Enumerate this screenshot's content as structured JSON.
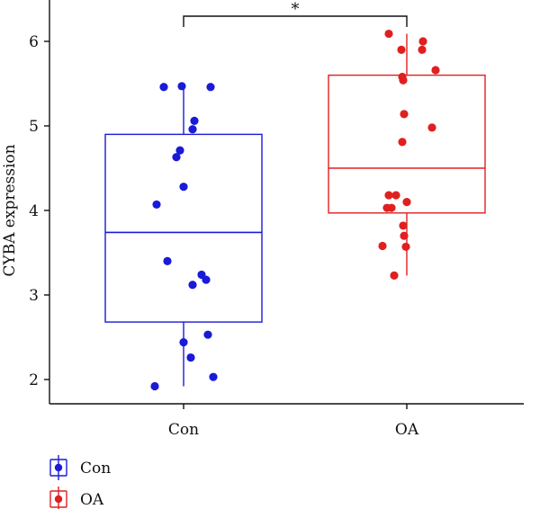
{
  "chart_data": {
    "type": "box",
    "title": "",
    "xlabel": "",
    "ylabel": "CYBA expression",
    "ylim": [
      1.75,
      6.5
    ],
    "yticks": [
      2,
      3,
      4,
      5,
      6
    ],
    "grid": false,
    "legend_position": "bottom-left",
    "significance": {
      "between": [
        "Con",
        "OA"
      ],
      "label": "*"
    },
    "categories": [
      "Con",
      "OA"
    ],
    "series": [
      {
        "name": "Con",
        "color": "#1a1ad8",
        "box": {
          "whisker_low": 1.92,
          "q1": 2.68,
          "median": 3.74,
          "q3": 4.9,
          "whisker_high": 5.47
        },
        "points": [
          {
            "jitter": 0.3,
            "y": 5.46
          },
          {
            "jitter": -0.02,
            "y": 5.47
          },
          {
            "jitter": -0.22,
            "y": 5.46
          },
          {
            "jitter": 0.12,
            "y": 5.06
          },
          {
            "jitter": 0.1,
            "y": 4.96
          },
          {
            "jitter": -0.04,
            "y": 4.71
          },
          {
            "jitter": -0.08,
            "y": 4.63
          },
          {
            "jitter": 0.0,
            "y": 4.28
          },
          {
            "jitter": -0.3,
            "y": 4.07
          },
          {
            "jitter": -0.18,
            "y": 3.4
          },
          {
            "jitter": 0.2,
            "y": 3.24
          },
          {
            "jitter": 0.25,
            "y": 3.18
          },
          {
            "jitter": 0.1,
            "y": 3.12
          },
          {
            "jitter": 0.27,
            "y": 2.53
          },
          {
            "jitter": 0.0,
            "y": 2.44
          },
          {
            "jitter": 0.08,
            "y": 2.26
          },
          {
            "jitter": 0.33,
            "y": 2.03
          },
          {
            "jitter": -0.32,
            "y": 1.92
          }
        ]
      },
      {
        "name": "OA",
        "color": "#e02020",
        "box": {
          "whisker_low": 3.23,
          "q1": 3.97,
          "median": 4.5,
          "q3": 5.6,
          "whisker_high": 6.09
        },
        "points": [
          {
            "jitter": -0.2,
            "y": 6.09
          },
          {
            "jitter": 0.18,
            "y": 6.0
          },
          {
            "jitter": -0.06,
            "y": 5.9
          },
          {
            "jitter": 0.17,
            "y": 5.9
          },
          {
            "jitter": 0.32,
            "y": 5.66
          },
          {
            "jitter": -0.05,
            "y": 5.58
          },
          {
            "jitter": -0.04,
            "y": 5.54
          },
          {
            "jitter": -0.03,
            "y": 5.14
          },
          {
            "jitter": 0.28,
            "y": 4.98
          },
          {
            "jitter": -0.05,
            "y": 4.81
          },
          {
            "jitter": -0.2,
            "y": 4.18
          },
          {
            "jitter": -0.12,
            "y": 4.18
          },
          {
            "jitter": 0.0,
            "y": 4.1
          },
          {
            "jitter": -0.22,
            "y": 4.03
          },
          {
            "jitter": -0.17,
            "y": 4.03
          },
          {
            "jitter": -0.04,
            "y": 3.82
          },
          {
            "jitter": -0.03,
            "y": 3.7
          },
          {
            "jitter": -0.27,
            "y": 3.58
          },
          {
            "jitter": -0.01,
            "y": 3.57
          },
          {
            "jitter": -0.14,
            "y": 3.23
          }
        ]
      }
    ]
  }
}
